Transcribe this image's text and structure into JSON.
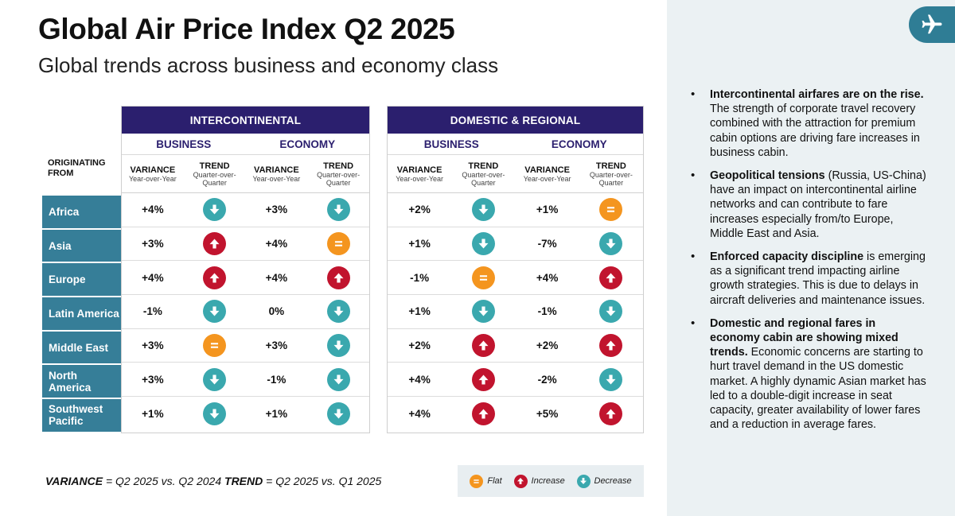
{
  "title": "Global Air Price Index Q2 2025",
  "subtitle": "Global trends across business and economy class",
  "chart_data": {
    "type": "table",
    "origin_header": [
      "ORIGINATING",
      "FROM"
    ],
    "origins": [
      "Africa",
      "Asia",
      "Europe",
      "Latin America",
      "Middle East",
      "North America",
      "Southwest Pacific"
    ],
    "sections": [
      {
        "name": "INTERCONTINENTAL",
        "cabins": [
          "BUSINESS",
          "ECONOMY"
        ],
        "columns": [
          {
            "h": "VARIANCE",
            "s": "Year-over-Year"
          },
          {
            "h": "TREND",
            "s": "Quarter-over-Quarter"
          },
          {
            "h": "VARIANCE",
            "s": "Year-over-Year"
          },
          {
            "h": "TREND",
            "s": "Quarter-over-Quarter"
          }
        ],
        "rows": [
          {
            "bv": "+4%",
            "bt": "decrease",
            "ev": "+3%",
            "et": "decrease"
          },
          {
            "bv": "+3%",
            "bt": "increase",
            "ev": "+4%",
            "et": "flat"
          },
          {
            "bv": "+4%",
            "bt": "increase",
            "ev": "+4%",
            "et": "increase"
          },
          {
            "bv": "-1%",
            "bt": "decrease",
            "ev": "0%",
            "et": "decrease"
          },
          {
            "bv": "+3%",
            "bt": "flat",
            "ev": "+3%",
            "et": "decrease"
          },
          {
            "bv": "+3%",
            "bt": "decrease",
            "ev": "-1%",
            "et": "decrease"
          },
          {
            "bv": "+1%",
            "bt": "decrease",
            "ev": "+1%",
            "et": "decrease"
          }
        ]
      },
      {
        "name": "DOMESTIC & REGIONAL",
        "cabins": [
          "BUSINESS",
          "ECONOMY"
        ],
        "columns": [
          {
            "h": "VARIANCE",
            "s": "Year-over-Year"
          },
          {
            "h": "TREND",
            "s": "Quarter-over-Quarter"
          },
          {
            "h": "VARIANCE",
            "s": "Year-over-Year"
          },
          {
            "h": "TREND",
            "s": "Quarter-over-Quarter"
          }
        ],
        "rows": [
          {
            "bv": "+2%",
            "bt": "decrease",
            "ev": "+1%",
            "et": "flat"
          },
          {
            "bv": "+1%",
            "bt": "decrease",
            "ev": "-7%",
            "et": "decrease"
          },
          {
            "bv": "-1%",
            "bt": "flat",
            "ev": "+4%",
            "et": "increase"
          },
          {
            "bv": "+1%",
            "bt": "decrease",
            "ev": "-1%",
            "et": "decrease"
          },
          {
            "bv": "+2%",
            "bt": "increase",
            "ev": "+2%",
            "et": "increase"
          },
          {
            "bv": "+4%",
            "bt": "increase",
            "ev": "-2%",
            "et": "decrease"
          },
          {
            "bv": "+4%",
            "bt": "increase",
            "ev": "+5%",
            "et": "increase"
          }
        ]
      }
    ]
  },
  "legend": {
    "variance_label": "VARIANCE",
    "variance_text": " = Q2 2025 vs. Q2 2024 ",
    "trend_label": "TREND",
    "trend_text": " = Q2 2025 vs. Q1 2025",
    "flat": "Flat",
    "increase": "Increase",
    "decrease": "Decrease"
  },
  "bullets": [
    {
      "bold": "Intercontinental airfares are on the rise.",
      "text": " The strength of corporate travel recovery combined with the attraction for premium cabin options are driving fare increases in business cabin."
    },
    {
      "bold": "Geopolitical tensions",
      "text": " (Russia, US-China) have an impact on intercontinental airline networks and can contribute to fare increases especially from/to Europe, Middle East and Asia."
    },
    {
      "bold": "Enforced capacity discipline",
      "text": " is emerging as a significant trend impacting airline growth strategies. This is due to delays in aircraft deliveries and maintenance issues."
    },
    {
      "bold": "Domestic and regional fares in economy cabin are showing mixed trends.",
      "text": " Economic concerns are starting to hurt travel demand in the US domestic market. A highly dynamic Asian market has led to a double-digit increase in seat capacity, greater availability of lower fares and a reduction in average fares."
    }
  ],
  "colors": {
    "band": "#2b1f6e",
    "origin": "#367e98",
    "decrease": "#3aa8ae",
    "increase": "#c1142e",
    "flat": "#f4951f",
    "panel": "#ebf1f3"
  }
}
